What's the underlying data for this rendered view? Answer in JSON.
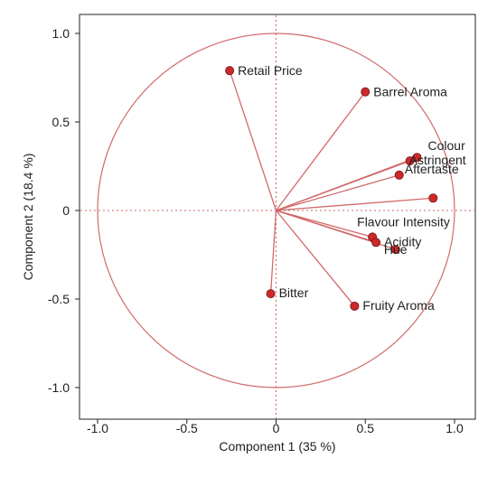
{
  "chart_data": {
    "type": "scatter",
    "title": "",
    "xlabel": "Component 1  (35 %)",
    "ylabel": "Component 2  (18.4 %)",
    "xlim": [
      -1.0,
      1.0
    ],
    "ylim": [
      -1.0,
      1.0
    ],
    "x_ticks": [
      "-1.0",
      "-0.5",
      "0",
      "0.5",
      "1.0"
    ],
    "y_ticks": [
      "1.0",
      "0.5",
      "0",
      "-0.5",
      "-1.0"
    ],
    "grid": false,
    "unit_circle": true,
    "colors": {
      "circle": "#d06a6a",
      "vector": "#d06a6a",
      "point": "#cc2a2a",
      "zero_line": "#d06a6a",
      "frame": "#222222"
    },
    "points": [
      {
        "label": "Retail Price",
        "x": -0.26,
        "y": 0.79
      },
      {
        "label": "Barrel Aroma",
        "x": 0.5,
        "y": 0.67
      },
      {
        "label": "Colour",
        "x": 0.79,
        "y": 0.3
      },
      {
        "label": "Astringent",
        "x": 0.75,
        "y": 0.28
      },
      {
        "label": "Aftertaste",
        "x": 0.69,
        "y": 0.2
      },
      {
        "label": "",
        "x": 0.88,
        "y": 0.07
      },
      {
        "label": "Flavour Intensity",
        "x": 0.54,
        "y": -0.15
      },
      {
        "label": "Acidity",
        "x": 0.56,
        "y": -0.18
      },
      {
        "label": "Hue",
        "x": 0.67,
        "y": -0.22
      },
      {
        "label": "Bitter",
        "x": -0.03,
        "y": -0.47
      },
      {
        "label": "Fruity Aroma",
        "x": 0.44,
        "y": -0.54
      }
    ]
  }
}
